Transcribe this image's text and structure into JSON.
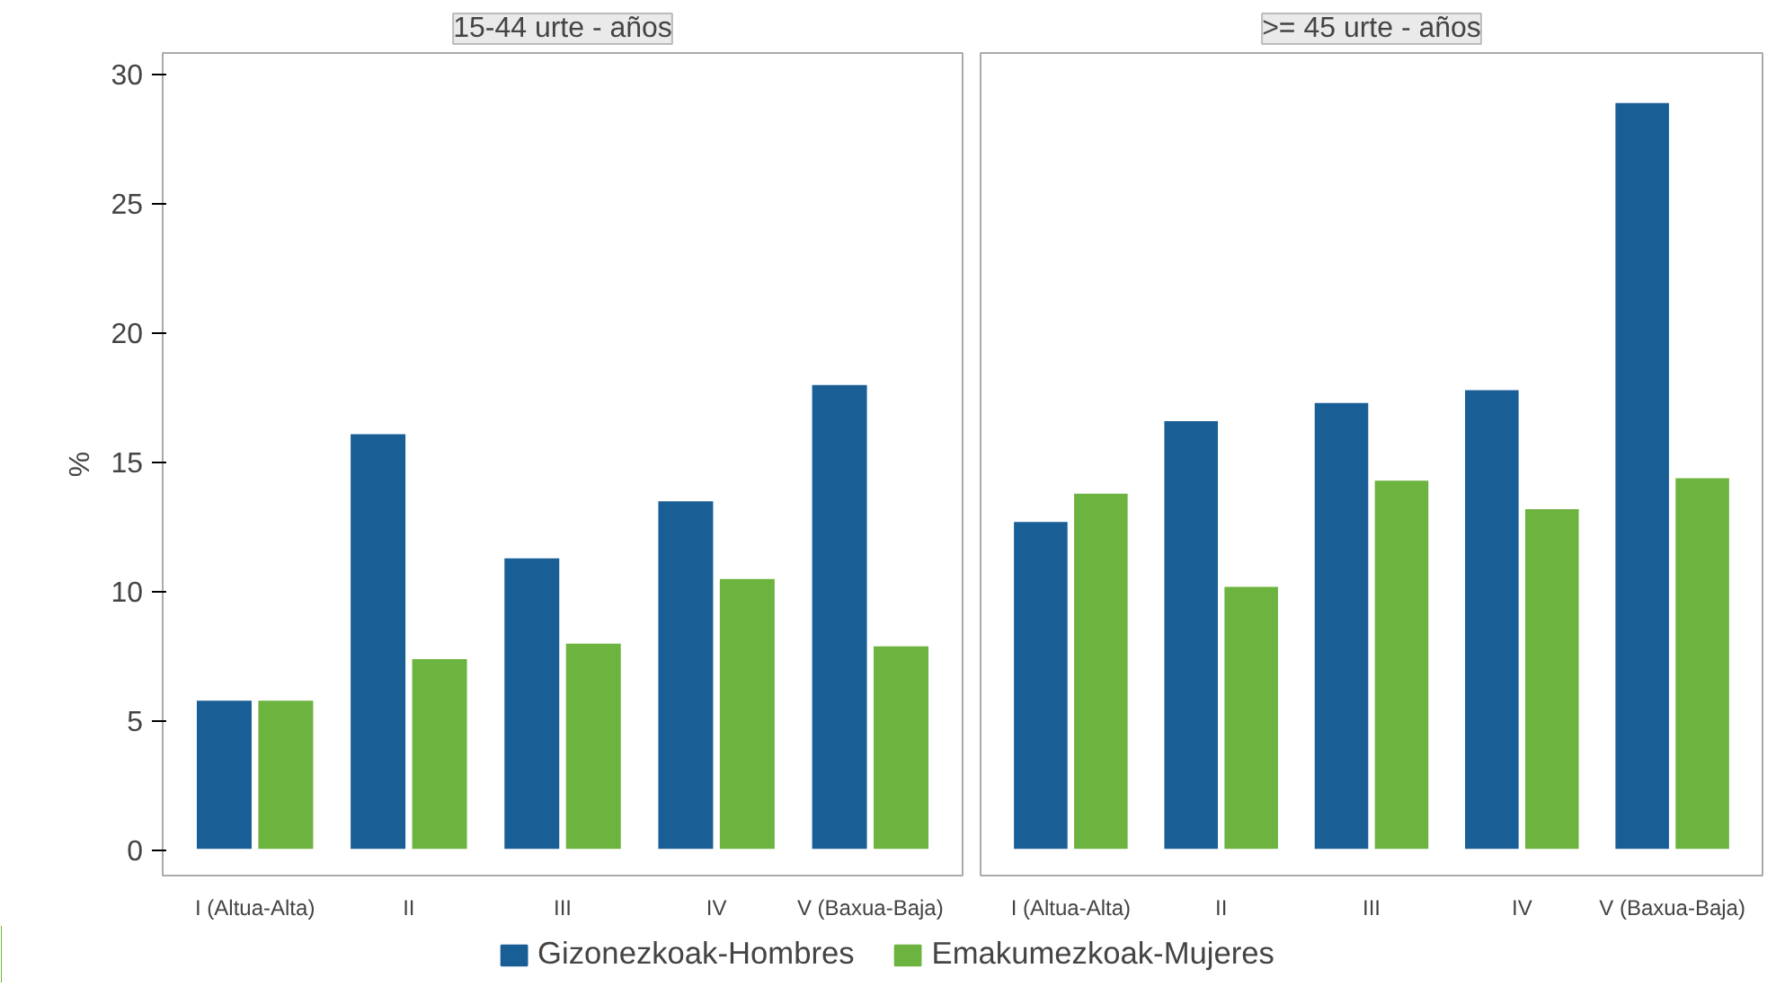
{
  "chart_data": [
    {
      "type": "bar",
      "title": "15-44 urte - años",
      "ylabel": "%",
      "categories": [
        "I (Altua-Alta)",
        "II",
        "III",
        "IV",
        "V (Baxua-Baja)"
      ],
      "ylim": [
        -1,
        30.8
      ],
      "yticks": [
        0,
        5,
        10,
        15,
        20,
        25,
        30
      ],
      "grid": false,
      "legend": "bottom",
      "series": [
        {
          "name": "Gizonezkoak-Hombres",
          "color": "#1a5e96",
          "values": [
            5.8,
            16.1,
            11.3,
            13.5,
            18.0
          ]
        },
        {
          "name": "Emakumezkoak-Mujeres",
          "color": "#6db33f",
          "values": [
            5.8,
            7.4,
            8.0,
            10.5,
            7.9
          ]
        }
      ]
    },
    {
      "type": "bar",
      "title": ">= 45 urte - años",
      "categories": [
        "I (Altua-Alta)",
        "II",
        "III",
        "IV",
        "V (Baxua-Baja)"
      ],
      "ylim": [
        -1,
        30.8
      ],
      "yticks": [
        0,
        5,
        10,
        15,
        20,
        25,
        30
      ],
      "grid": false,
      "tick_labels": "x",
      "series": [
        {
          "color": "#1a5e96",
          "values": [
            12.7,
            16.6,
            17.3,
            17.8,
            28.9
          ]
        },
        {
          "color": "#6db33f",
          "values": [
            13.8,
            10.2,
            14.3,
            13.2,
            14.4
          ]
        }
      ]
    }
  ]
}
